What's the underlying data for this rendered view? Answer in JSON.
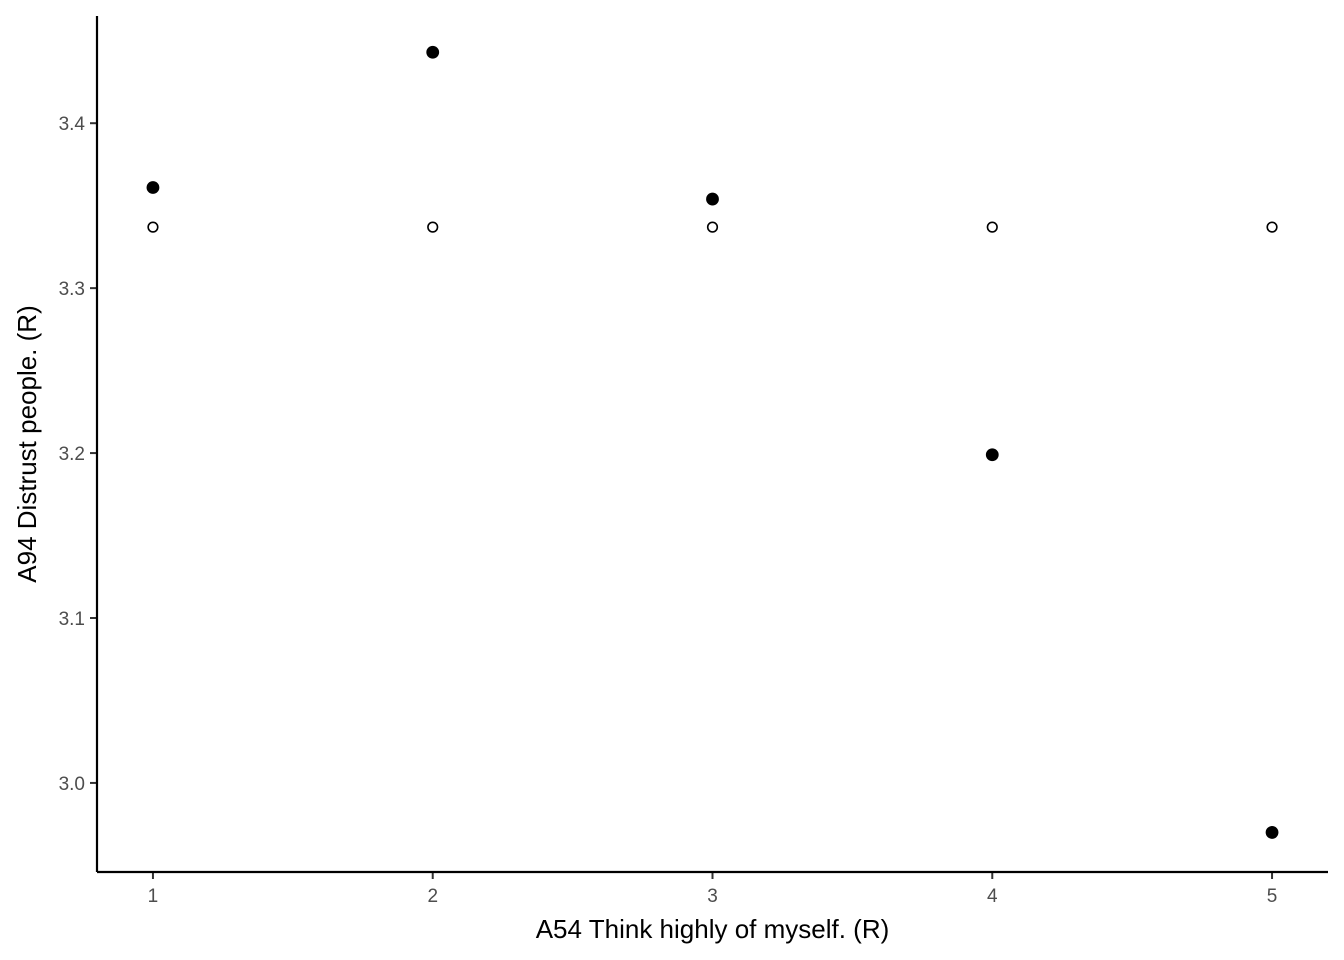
{
  "chart_data": {
    "type": "scatter",
    "title": "",
    "xlabel": "A54 Think highly of myself. (R)",
    "ylabel": "A94 Distrust people. (R)",
    "xlim": [
      0.8,
      5.2
    ],
    "ylim": [
      2.946,
      3.465
    ],
    "x_ticks": [
      1,
      2,
      3,
      4,
      5
    ],
    "x_tick_labels": [
      "1",
      "2",
      "3",
      "4",
      "5"
    ],
    "y_ticks": [
      3.0,
      3.1,
      3.2,
      3.3,
      3.4
    ],
    "y_tick_labels": [
      "3.0",
      "3.1",
      "3.2",
      "3.3",
      "3.4"
    ],
    "grid": false,
    "legend": "none",
    "series": [
      {
        "marker": "filled-circle",
        "color": "#000000",
        "x": [
          1,
          2,
          3,
          4,
          5
        ],
        "y": [
          3.361,
          3.443,
          3.354,
          3.199,
          2.97
        ]
      },
      {
        "marker": "open-circle",
        "color": "#000000",
        "x": [
          1,
          2,
          3,
          4,
          5
        ],
        "y": [
          3.337,
          3.337,
          3.337,
          3.337,
          3.337
        ]
      }
    ]
  }
}
